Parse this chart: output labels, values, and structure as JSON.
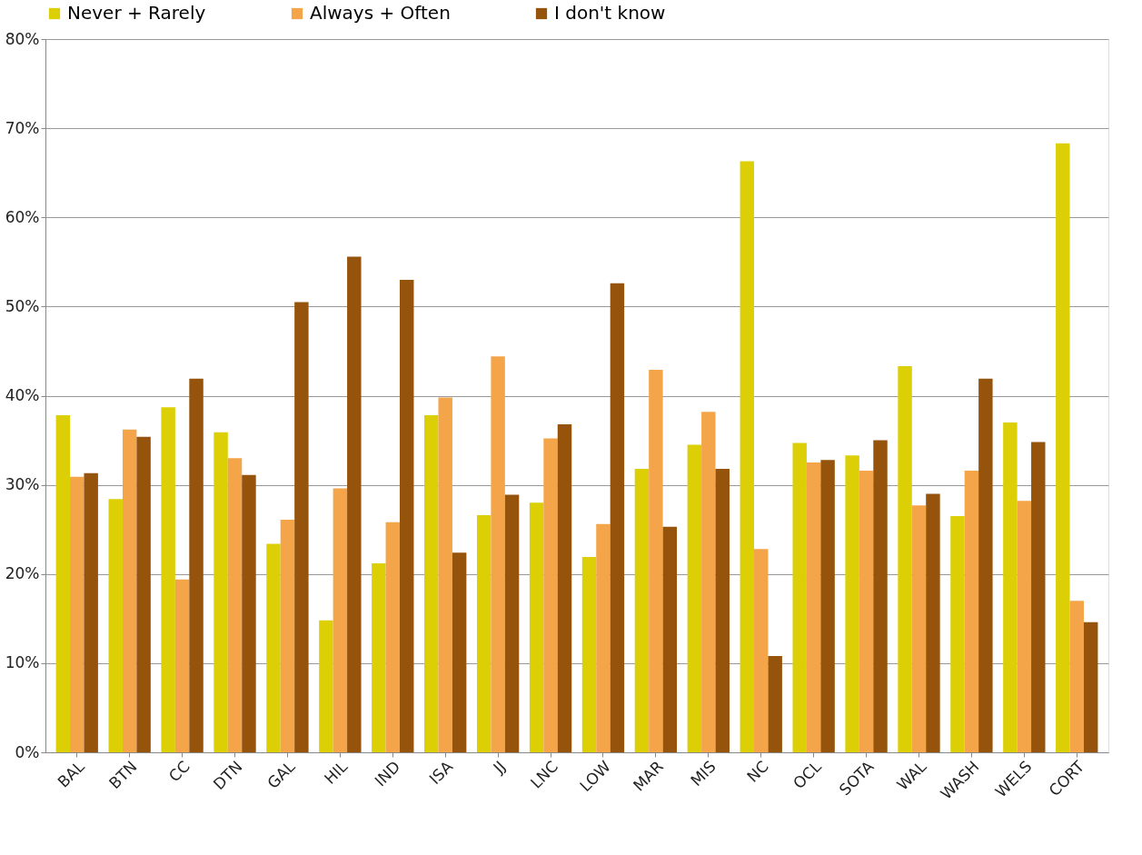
{
  "chart_data": {
    "type": "bar",
    "categories": [
      "BAL",
      "BTN",
      "CC",
      "DTN",
      "GAL",
      "HIL",
      "IND",
      "ISA",
      "JJ",
      "LNC",
      "LOW",
      "MAR",
      "MIS",
      "NC",
      "OCL",
      "SOTA",
      "WAL",
      "WASH",
      "WELS",
      "CORT"
    ],
    "series": [
      {
        "name": "Never + Rarely",
        "color": "#dccf05",
        "values": [
          37.8,
          28.4,
          38.7,
          35.9,
          23.4,
          14.8,
          21.2,
          37.8,
          26.6,
          28.0,
          21.9,
          31.8,
          34.5,
          66.3,
          34.7,
          33.3,
          43.3,
          26.5,
          37.0,
          68.3
        ]
      },
      {
        "name": "Always + Often",
        "color": "#f4a549",
        "values": [
          30.9,
          36.2,
          19.4,
          33.0,
          26.1,
          29.6,
          25.8,
          39.8,
          44.4,
          35.2,
          25.6,
          42.9,
          38.2,
          22.8,
          32.5,
          31.6,
          27.7,
          31.6,
          28.2,
          17.0
        ]
      },
      {
        "name": "I don't know",
        "color": "#95530c",
        "values": [
          31.3,
          35.4,
          41.9,
          31.1,
          50.5,
          55.6,
          53.0,
          22.4,
          28.9,
          36.8,
          52.6,
          25.3,
          31.8,
          10.8,
          32.8,
          35.0,
          29.0,
          41.9,
          34.8,
          14.6
        ]
      }
    ],
    "ylim": [
      0,
      80
    ],
    "yticks": [
      {
        "value": 0,
        "label": "0%"
      },
      {
        "value": 10,
        "label": "10%"
      },
      {
        "value": 20,
        "label": "20%"
      },
      {
        "value": 30,
        "label": "30%"
      },
      {
        "value": 40,
        "label": "40%"
      },
      {
        "value": 50,
        "label": "50%"
      },
      {
        "value": 60,
        "label": "60%"
      },
      {
        "value": 70,
        "label": "70%"
      },
      {
        "value": 80,
        "label": "80%"
      }
    ],
    "grid": "y",
    "legend": "top"
  }
}
